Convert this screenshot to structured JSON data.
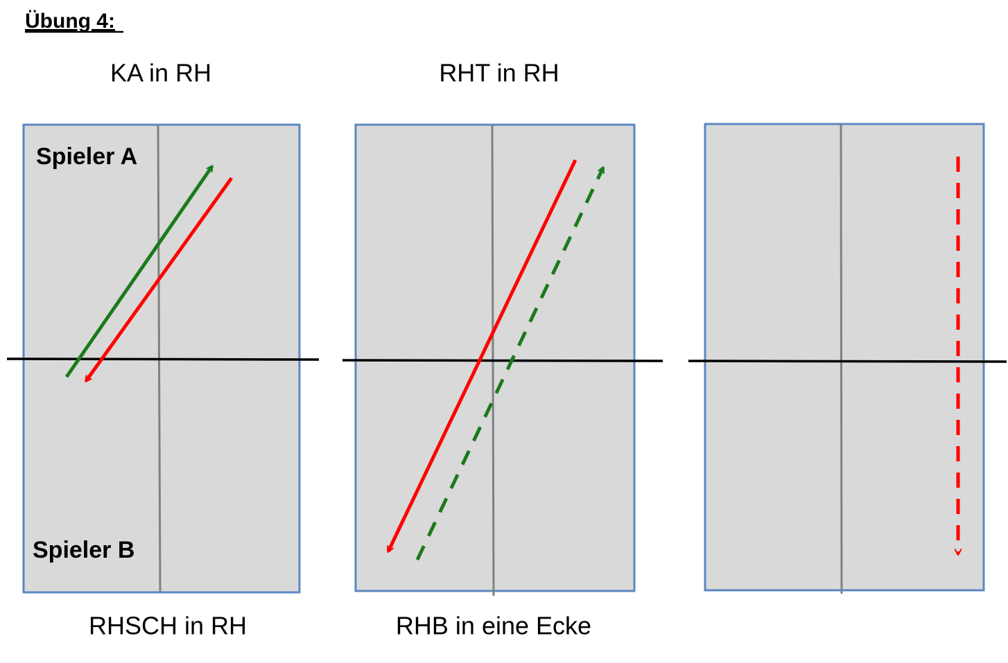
{
  "header": {
    "title": "Übung 4:"
  },
  "tables": [
    {
      "top_label": "KA in RH",
      "bottom_label": "RHSCH in RH",
      "player_top": "Spieler A",
      "player_bottom": "Spieler B"
    },
    {
      "top_label": "RHT in RH",
      "bottom_label": "RHB in eine Ecke"
    },
    {}
  ]
}
